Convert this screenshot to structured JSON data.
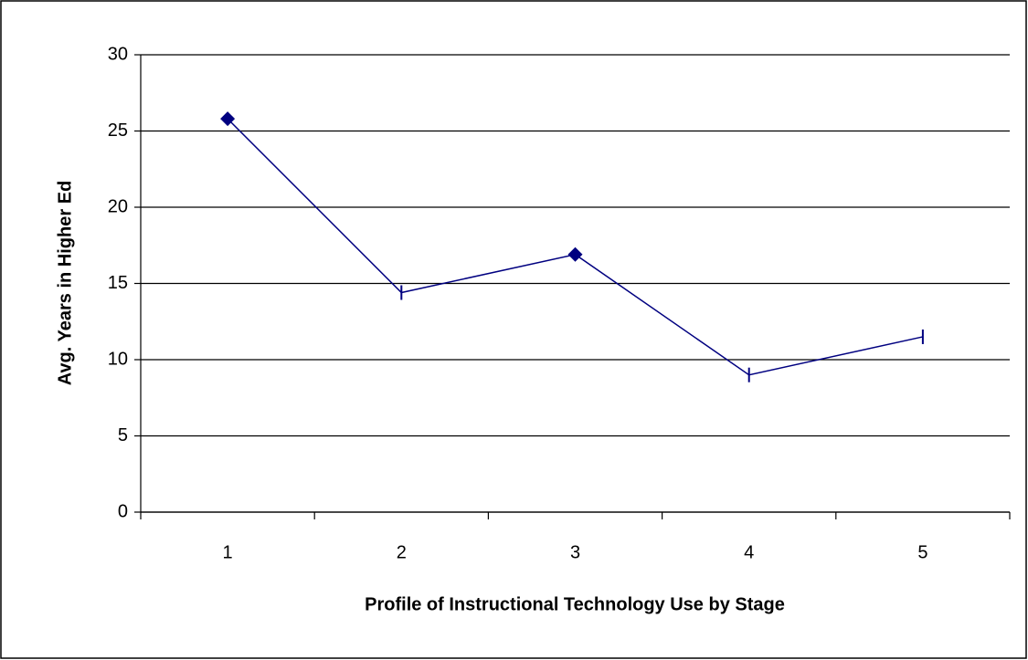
{
  "chart_data": {
    "type": "line",
    "x_label": "Profile of Instructional Technology Use by Stage",
    "y_label": "Avg. Years in Higher Ed",
    "categories": [
      "1",
      "2",
      "3",
      "4",
      "5"
    ],
    "values": [
      25.8,
      14.4,
      16.9,
      9.0,
      11.5
    ],
    "markers": [
      "diamond",
      "bar",
      "diamond",
      "bar",
      "bar"
    ],
    "color": "#000080",
    "ylim": [
      0,
      30
    ],
    "yticks": [
      0,
      5,
      10,
      15,
      20,
      25,
      30
    ],
    "grid": true
  }
}
